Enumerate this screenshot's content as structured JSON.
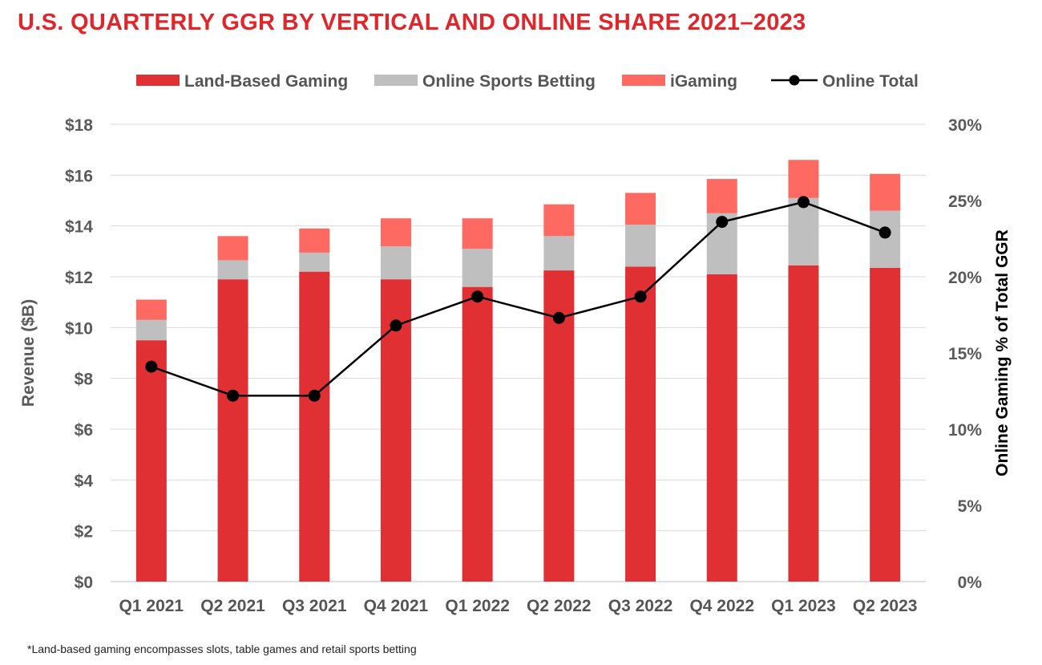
{
  "chart_data": {
    "type": "bar",
    "stacked": true,
    "title": "U.S. QUARTERLY GGR BY VERTICAL AND ONLINE SHARE 2021–2023",
    "categories": [
      "Q1 2021",
      "Q2 2021",
      "Q3 2021",
      "Q4 2021",
      "Q1 2022",
      "Q2 2022",
      "Q3 2022",
      "Q4 2022",
      "Q1 2023",
      "Q2 2023"
    ],
    "ylabel": "Revenue ($B)",
    "y2label": "Online Gaming % of Total GGR",
    "ylim": [
      0,
      18
    ],
    "y2lim": [
      0,
      30
    ],
    "yticks": [
      "$0",
      "$2",
      "$4",
      "$6",
      "$8",
      "$10",
      "$12",
      "$14",
      "$16",
      "$18"
    ],
    "y2ticks": [
      "0%",
      "5%",
      "10%",
      "15%",
      "20%",
      "25%",
      "30%"
    ],
    "grid": true,
    "legend_position": "top",
    "series": [
      {
        "name": "Land-Based Gaming",
        "type": "bar",
        "color": "#e03034",
        "values": [
          9.5,
          11.9,
          12.2,
          11.9,
          11.6,
          12.25,
          12.4,
          12.1,
          12.45,
          12.35
        ]
      },
      {
        "name": "Online Sports Betting",
        "type": "bar",
        "color": "#bfbfbf",
        "values": [
          0.8,
          0.75,
          0.75,
          1.3,
          1.5,
          1.35,
          1.65,
          2.4,
          2.65,
          2.25
        ]
      },
      {
        "name": "iGaming",
        "type": "bar",
        "color": "#fe6961",
        "values": [
          0.8,
          0.95,
          0.95,
          1.1,
          1.2,
          1.25,
          1.25,
          1.35,
          1.5,
          1.45
        ]
      },
      {
        "name": "Online Total",
        "type": "line",
        "axis": "right",
        "color": "#000000",
        "values": [
          14.1,
          12.2,
          12.2,
          16.8,
          18.7,
          17.3,
          18.7,
          23.6,
          24.9,
          22.9
        ]
      }
    ]
  },
  "footnote": "*Land-based gaming encompasses slots, table games and retail sports betting"
}
